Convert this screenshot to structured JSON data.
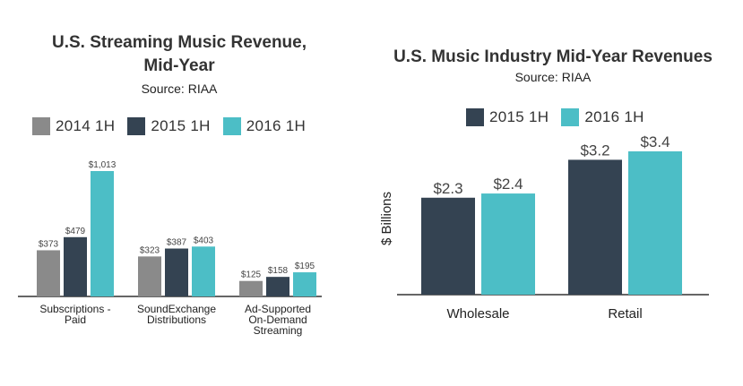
{
  "colors": {
    "2014 1H": "#8a8a8a",
    "2015 1H": "#344352",
    "2016 1H": "#4cbec6",
    "axis": "#333333"
  },
  "chart_data": [
    {
      "type": "bar",
      "title_line1": "U.S. Streaming Music Revenue,",
      "title_line2": "Mid-Year",
      "subtitle": "Source: RIAA",
      "categories": [
        [
          "Subscriptions -",
          "Paid"
        ],
        [
          "SoundExchange",
          "Distributions"
        ],
        [
          "Ad-Supported",
          "On-Demand",
          "Streaming"
        ]
      ],
      "series": [
        {
          "name": "2014 1H",
          "values": [
            373,
            323,
            125
          ],
          "labels": [
            "$373",
            "$323",
            "$125"
          ]
        },
        {
          "name": "2015 1H",
          "values": [
            479,
            387,
            158
          ],
          "labels": [
            "$479",
            "$387",
            "$158"
          ]
        },
        {
          "name": "2016 1H",
          "values": [
            1013,
            403,
            195
          ],
          "labels": [
            "$1,013",
            "$403",
            "$195"
          ]
        }
      ],
      "ylim": [
        0,
        1013
      ],
      "ylabel": "",
      "xlabel": "",
      "grid": false,
      "legend_position": "top"
    },
    {
      "type": "bar",
      "title_line1": "U.S. Music Industry Mid-Year Revenues",
      "subtitle": "Source: RIAA",
      "categories": [
        [
          "Wholesale"
        ],
        [
          "Retail"
        ]
      ],
      "series": [
        {
          "name": "2015 1H",
          "values": [
            2.3,
            3.2
          ],
          "labels": [
            "$2.3",
            "$3.2"
          ]
        },
        {
          "name": "2016 1H",
          "values": [
            2.4,
            3.4
          ],
          "labels": [
            "$2.4",
            "$3.4"
          ]
        }
      ],
      "ylim": [
        0,
        3.4
      ],
      "ylabel": "$ Billions",
      "xlabel": "",
      "grid": false,
      "legend_position": "top"
    }
  ]
}
